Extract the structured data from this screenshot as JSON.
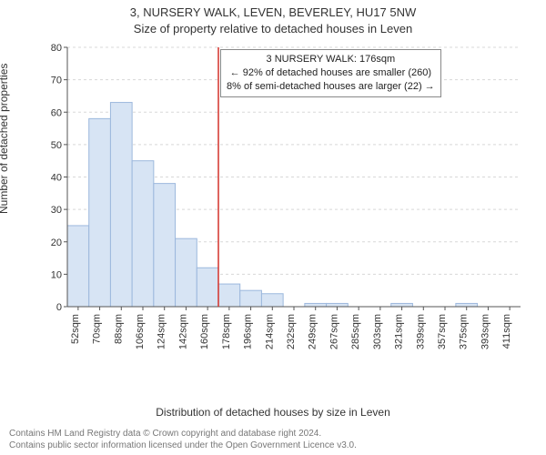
{
  "title": "3, NURSERY WALK, LEVEN, BEVERLEY, HU17 5NW",
  "subtitle": "Size of property relative to detached houses in Leven",
  "y_axis_label": "Number of detached properties",
  "x_axis_label": "Distribution of detached houses by size in Leven",
  "footer_line1": "Contains HM Land Registry data © Crown copyright and database right 2024.",
  "footer_line2": "Contains public sector information licensed under the Open Government Licence v3.0.",
  "annotation": {
    "line1": "3 NURSERY WALK: 176sqm",
    "line2": "← 92% of detached houses are smaller (260)",
    "line3": "8% of semi-detached houses are larger (22) →"
  },
  "chart": {
    "type": "histogram",
    "background_color": "#ffffff",
    "bar_fill": "#d7e4f4",
    "bar_stroke": "#9cb8dd",
    "marker_color": "#d3302a",
    "axis_color": "#555555",
    "grid_color": "#d8d8d8",
    "text_color": "#333333",
    "footer_color": "#777777",
    "ylim": [
      0,
      80
    ],
    "ytick_step": 10,
    "x_categories": [
      "52sqm",
      "70sqm",
      "88sqm",
      "106sqm",
      "124sqm",
      "142sqm",
      "160sqm",
      "178sqm",
      "196sqm",
      "214sqm",
      "232sqm",
      "249sqm",
      "267sqm",
      "285sqm",
      "303sqm",
      "321sqm",
      "339sqm",
      "357sqm",
      "375sqm",
      "393sqm",
      "411sqm"
    ],
    "values": [
      25,
      58,
      63,
      45,
      38,
      21,
      12,
      7,
      5,
      4,
      0,
      1,
      1,
      0,
      0,
      1,
      0,
      0,
      1,
      0,
      0
    ],
    "marker_category_index": 7,
    "title_fontsize": 13,
    "label_fontsize": 12,
    "tick_fontsize": 11,
    "annotation_fontsize": 11
  }
}
